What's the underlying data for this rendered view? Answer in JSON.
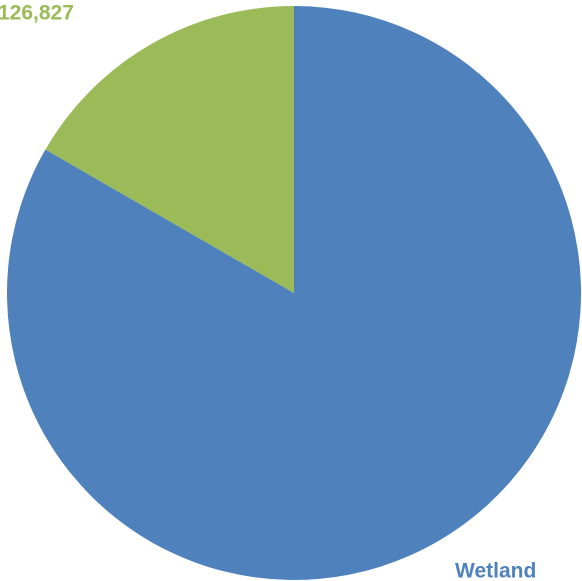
{
  "chart_data": {
    "type": "pie",
    "categories": [
      "Wetland",
      null
    ],
    "values": [
      634000,
      126827
    ],
    "value_labels": [
      null,
      "126,827"
    ],
    "colors": [
      "#4f81bd",
      "#9bbb59"
    ]
  }
}
